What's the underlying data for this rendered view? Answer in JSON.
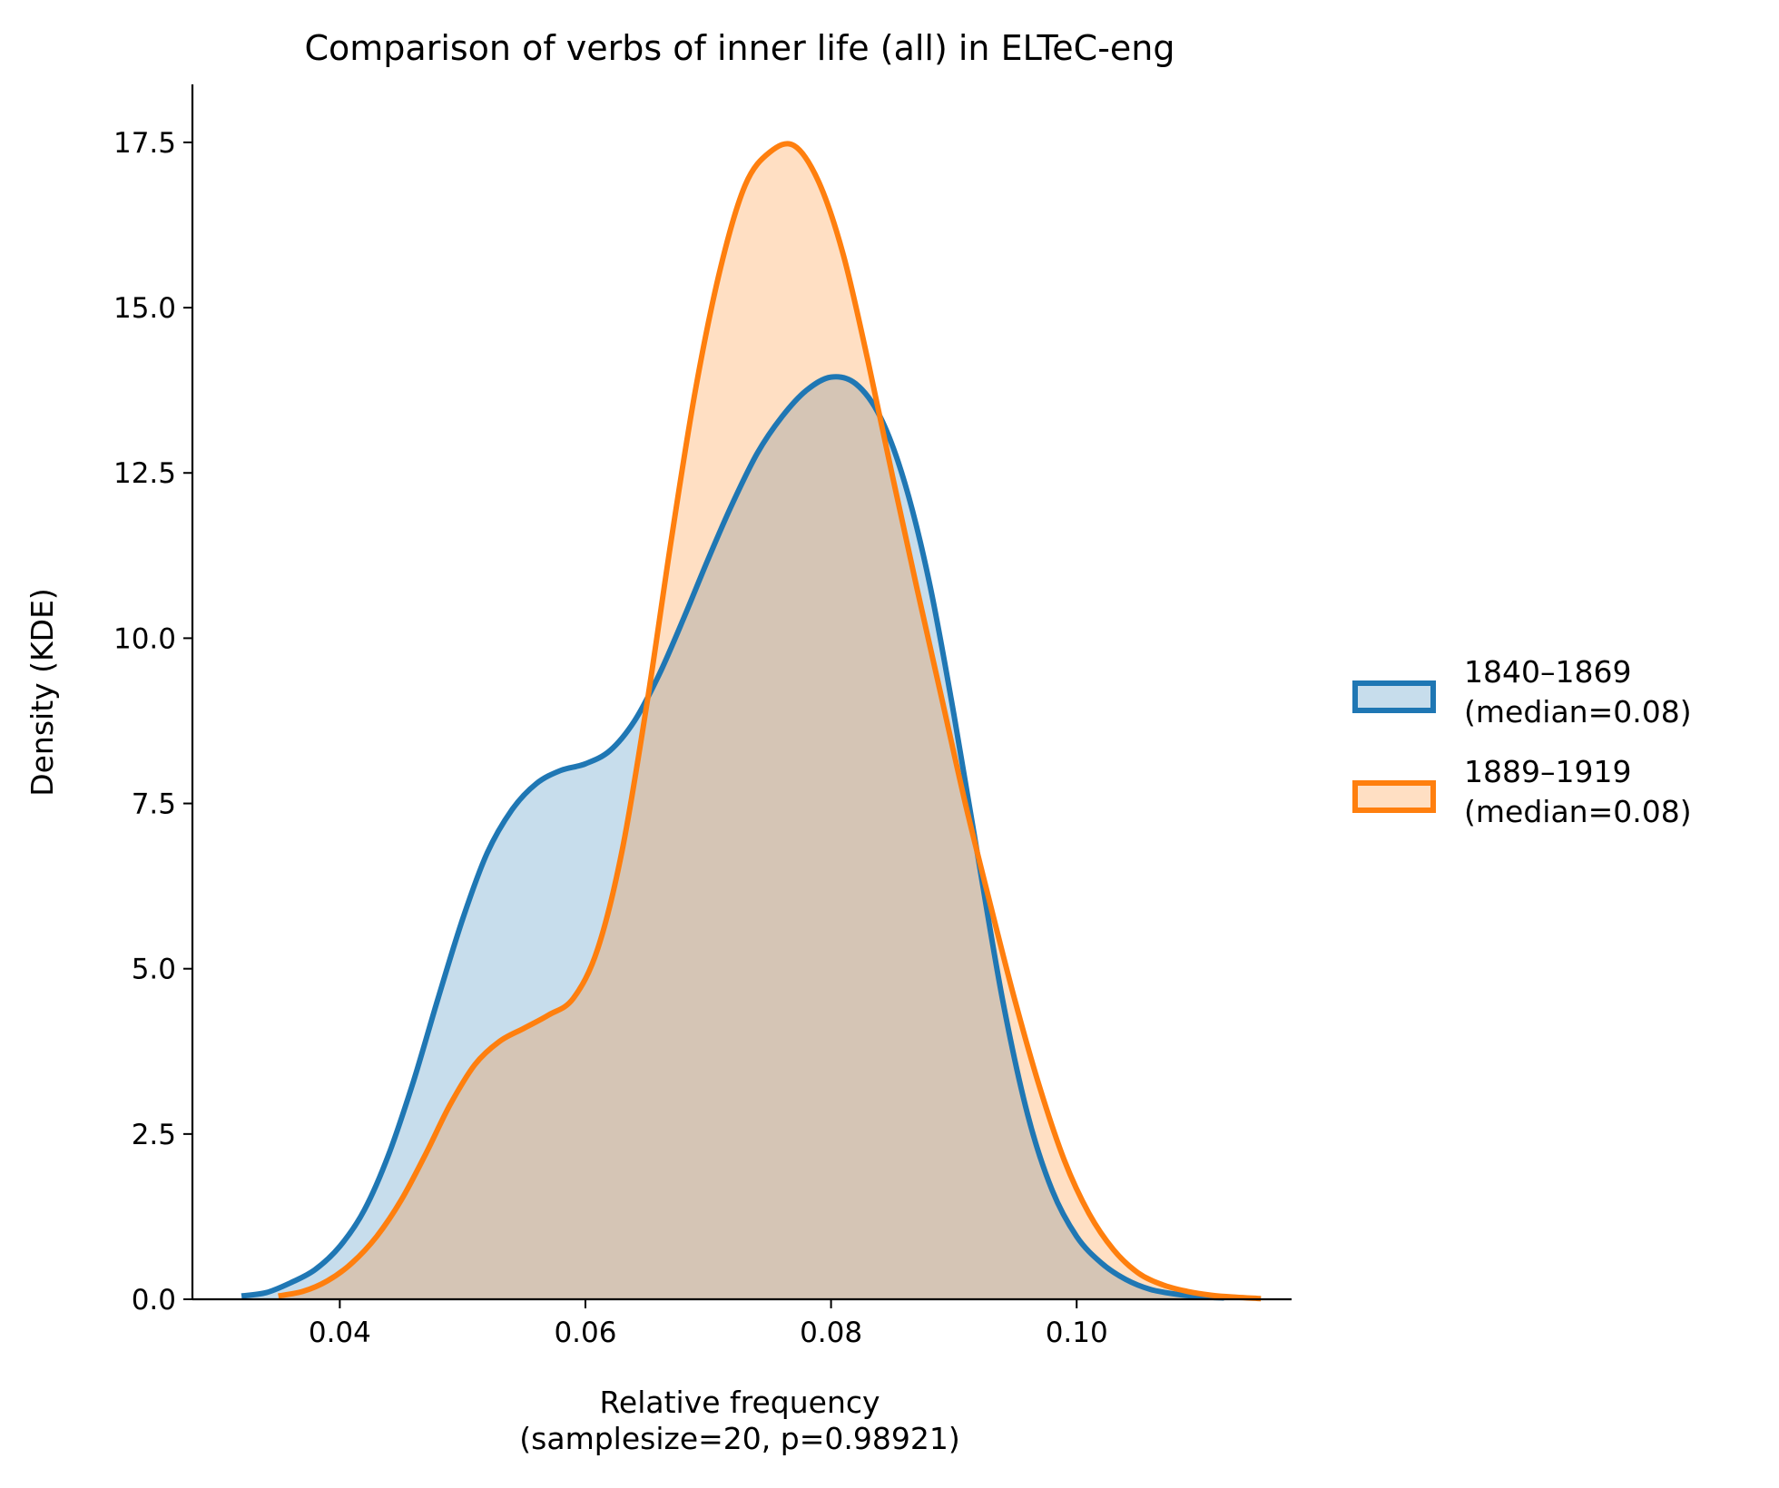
{
  "chart_data": {
    "type": "area",
    "title": "Comparison of verbs of inner life (all) in ELTeC-eng",
    "xlabel": [
      "Relative frequency",
      "(samplesize=20, p=0.98921)"
    ],
    "ylabel": "Density (KDE)",
    "xlim": [
      0.028,
      0.1175
    ],
    "ylim": [
      0,
      18.35
    ],
    "xticks": [
      0.04,
      0.06,
      0.08,
      0.1
    ],
    "xtick_labels": [
      "0.04",
      "0.06",
      "0.08",
      "0.10"
    ],
    "yticks": [
      0,
      2.5,
      5,
      7.5,
      10,
      12.5,
      15,
      17.5
    ],
    "ytick_labels": [
      "0.0",
      "2.5",
      "5.0",
      "7.5",
      "10.0",
      "12.5",
      "15.0",
      "17.5"
    ],
    "grid": false,
    "legend_position": "right",
    "series": [
      {
        "name": "1840–1869",
        "label_lines": [
          "1840–1869",
          "(median=0.08)"
        ],
        "color": "#1f77b4",
        "x": [
          0.032,
          0.034,
          0.036,
          0.038,
          0.04,
          0.042,
          0.044,
          0.046,
          0.048,
          0.05,
          0.052,
          0.054,
          0.056,
          0.058,
          0.06,
          0.062,
          0.064,
          0.066,
          0.068,
          0.07,
          0.072,
          0.074,
          0.076,
          0.078,
          0.08,
          0.082,
          0.084,
          0.086,
          0.088,
          0.09,
          0.092,
          0.094,
          0.096,
          0.098,
          0.1,
          0.102,
          0.104,
          0.106,
          0.108,
          0.11,
          0.112
        ],
        "y": [
          0.05,
          0.1,
          0.25,
          0.45,
          0.8,
          1.35,
          2.2,
          3.3,
          4.55,
          5.75,
          6.75,
          7.4,
          7.8,
          8.0,
          8.1,
          8.3,
          8.75,
          9.45,
          10.3,
          11.2,
          12.05,
          12.8,
          13.35,
          13.75,
          13.95,
          13.85,
          13.35,
          12.35,
          10.85,
          8.85,
          6.65,
          4.5,
          2.8,
          1.65,
          0.95,
          0.55,
          0.3,
          0.15,
          0.08,
          0.04,
          0.02
        ]
      },
      {
        "name": "1889–1919",
        "label_lines": [
          "1889–1919",
          "(median=0.08)"
        ],
        "color": "#ff7f0e",
        "x": [
          0.035,
          0.037,
          0.039,
          0.041,
          0.043,
          0.045,
          0.047,
          0.049,
          0.051,
          0.053,
          0.055,
          0.057,
          0.059,
          0.061,
          0.063,
          0.065,
          0.067,
          0.069,
          0.071,
          0.073,
          0.075,
          0.077,
          0.079,
          0.081,
          0.083,
          0.085,
          0.087,
          0.089,
          0.091,
          0.093,
          0.095,
          0.097,
          0.099,
          0.101,
          0.103,
          0.105,
          0.107,
          0.109,
          0.111,
          0.113,
          0.115
        ],
        "y": [
          0.05,
          0.12,
          0.28,
          0.55,
          0.95,
          1.5,
          2.2,
          2.95,
          3.55,
          3.9,
          4.1,
          4.3,
          4.55,
          5.3,
          6.8,
          9.0,
          11.5,
          13.8,
          15.6,
          16.85,
          17.35,
          17.45,
          16.9,
          15.8,
          14.2,
          12.45,
          10.75,
          9.1,
          7.45,
          5.95,
          4.5,
          3.2,
          2.1,
          1.3,
          0.75,
          0.4,
          0.22,
          0.12,
          0.06,
          0.03,
          0.01
        ]
      }
    ]
  }
}
